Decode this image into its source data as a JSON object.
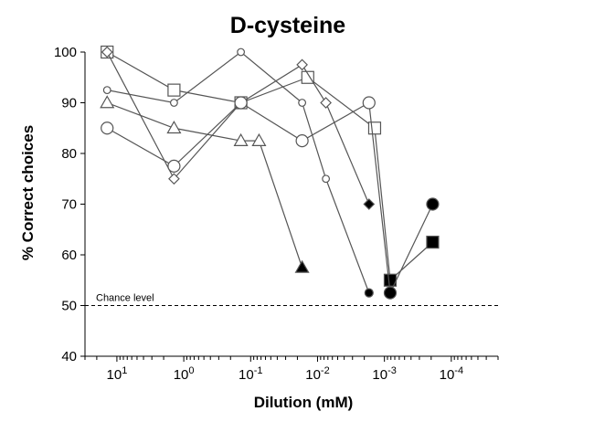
{
  "chart_data": {
    "type": "line",
    "title": "D-cysteine",
    "xlabel": "Dilution (mM)",
    "ylabel": "% Correct choices",
    "x_scale": "log-reversed",
    "xlim": [
      30,
      2e-05
    ],
    "ylim": [
      40,
      100
    ],
    "y_ticks": [
      40,
      50,
      60,
      70,
      80,
      90,
      100
    ],
    "x_ticks": [
      {
        "value": 10,
        "mantissa": "10",
        "exp": "1"
      },
      {
        "value": 1,
        "mantissa": "10",
        "exp": "0"
      },
      {
        "value": 0.1,
        "mantissa": "10",
        "exp": "-1"
      },
      {
        "value": 0.01,
        "mantissa": "10",
        "exp": "-2"
      },
      {
        "value": 0.001,
        "mantissa": "10",
        "exp": "-3"
      },
      {
        "value": 0.0001,
        "mantissa": "10",
        "exp": "-4"
      }
    ],
    "chance_level": {
      "value": 50,
      "label": "Chance level"
    },
    "grid": false,
    "series": [
      {
        "marker": "square-large",
        "points": [
          {
            "x": 14.0,
            "y": 100,
            "filled": false
          },
          {
            "x": 1.4,
            "y": 92.5,
            "filled": false
          },
          {
            "x": 0.14,
            "y": 90,
            "filled": false
          },
          {
            "x": 0.014,
            "y": 95,
            "filled": false
          },
          {
            "x": 0.0014,
            "y": 85,
            "filled": false
          },
          {
            "x": 0.00082,
            "y": 55,
            "filled": true
          },
          {
            "x": 0.00019,
            "y": 62.5,
            "filled": true
          }
        ]
      },
      {
        "marker": "circle-small",
        "points": [
          {
            "x": 14.0,
            "y": 92.5,
            "filled": false
          },
          {
            "x": 1.4,
            "y": 90,
            "filled": false
          },
          {
            "x": 0.14,
            "y": 100,
            "filled": false
          },
          {
            "x": 0.017,
            "y": 90,
            "filled": false
          },
          {
            "x": 0.0075,
            "y": 75,
            "filled": false
          },
          {
            "x": 0.0017,
            "y": 52.5,
            "filled": true
          }
        ]
      },
      {
        "marker": "diamond",
        "points": [
          {
            "x": 14.0,
            "y": 100,
            "filled": false
          },
          {
            "x": 1.4,
            "y": 75,
            "filled": false
          },
          {
            "x": 0.14,
            "y": 90,
            "filled": false
          },
          {
            "x": 0.017,
            "y": 97.5,
            "filled": false
          },
          {
            "x": 0.0075,
            "y": 90,
            "filled": false
          },
          {
            "x": 0.0017,
            "y": 70,
            "filled": true
          }
        ]
      },
      {
        "marker": "triangle",
        "points": [
          {
            "x": 14.0,
            "y": 90,
            "filled": false
          },
          {
            "x": 1.4,
            "y": 85,
            "filled": false
          },
          {
            "x": 0.14,
            "y": 82.5,
            "filled": false
          },
          {
            "x": 0.075,
            "y": 82.5,
            "filled": false
          },
          {
            "x": 0.017,
            "y": 57.5,
            "filled": true
          }
        ]
      },
      {
        "marker": "circle-large",
        "points": [
          {
            "x": 14.0,
            "y": 85,
            "filled": false
          },
          {
            "x": 1.4,
            "y": 77.5,
            "filled": false
          },
          {
            "x": 0.14,
            "y": 90,
            "filled": false
          },
          {
            "x": 0.017,
            "y": 82.5,
            "filled": false
          },
          {
            "x": 0.0017,
            "y": 90,
            "filled": false
          },
          {
            "x": 0.00082,
            "y": 52.5,
            "filled": true
          },
          {
            "x": 0.00019,
            "y": 70,
            "filled": true
          }
        ]
      }
    ]
  }
}
